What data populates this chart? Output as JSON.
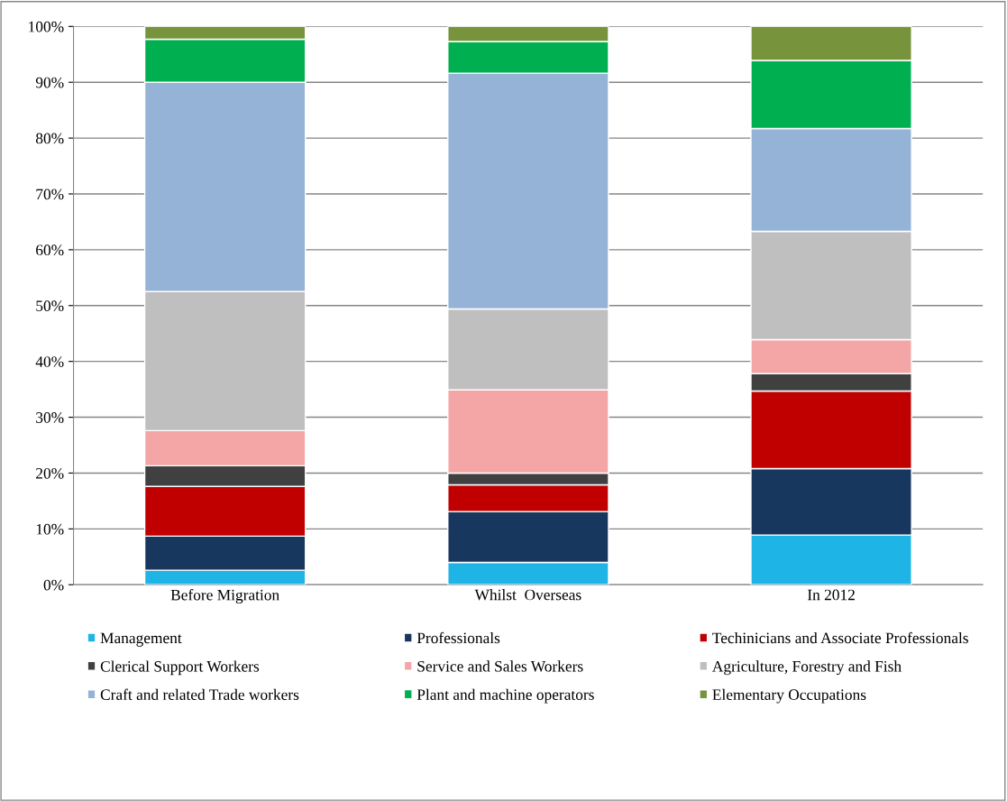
{
  "chart_data": {
    "type": "bar",
    "stacked": true,
    "categories": [
      "Before Migration",
      "Whilst  Overseas",
      "In 2012"
    ],
    "series": [
      {
        "name": "Management",
        "color": "#1fb4e6",
        "values": [
          2.6,
          4.0,
          8.9
        ]
      },
      {
        "name": "Professionals",
        "color": "#17375e",
        "values": [
          6.1,
          9.1,
          11.9
        ]
      },
      {
        "name": "Techinicians and Associate Professionals",
        "color": "#c00000",
        "values": [
          8.9,
          4.8,
          13.9
        ]
      },
      {
        "name": "Clerical Support Workers",
        "color": "#404040",
        "values": [
          3.7,
          2.1,
          3.1
        ]
      },
      {
        "name": "Service and Sales Workers",
        "color": "#f4a6a6",
        "values": [
          6.3,
          14.9,
          6.1
        ]
      },
      {
        "name": "Agriculture, Forestry and Fish",
        "color": "#bfbfbf",
        "values": [
          24.9,
          14.5,
          19.4
        ]
      },
      {
        "name": "Craft and related Trade workers",
        "color": "#95b3d7",
        "values": [
          37.5,
          42.2,
          18.4
        ]
      },
      {
        "name": "Plant and machine operators",
        "color": "#00b050",
        "values": [
          7.7,
          5.7,
          12.2
        ]
      },
      {
        "name": "Elementary Occupations",
        "color": "#77933c",
        "values": [
          2.3,
          2.7,
          6.1
        ]
      }
    ],
    "ylim": [
      0,
      100
    ],
    "yticks": [
      {
        "value": 0,
        "label": "0%"
      },
      {
        "value": 10,
        "label": "10%"
      },
      {
        "value": 20,
        "label": "20%"
      },
      {
        "value": 30,
        "label": "30%"
      },
      {
        "value": 40,
        "label": "40%"
      },
      {
        "value": 50,
        "label": "50%"
      },
      {
        "value": 60,
        "label": "60%"
      },
      {
        "value": 70,
        "label": "70%"
      },
      {
        "value": 80,
        "label": "80%"
      },
      {
        "value": 90,
        "label": "90%"
      },
      {
        "value": 100,
        "label": "100%"
      }
    ],
    "grid": "y",
    "legend": "bottom"
  }
}
